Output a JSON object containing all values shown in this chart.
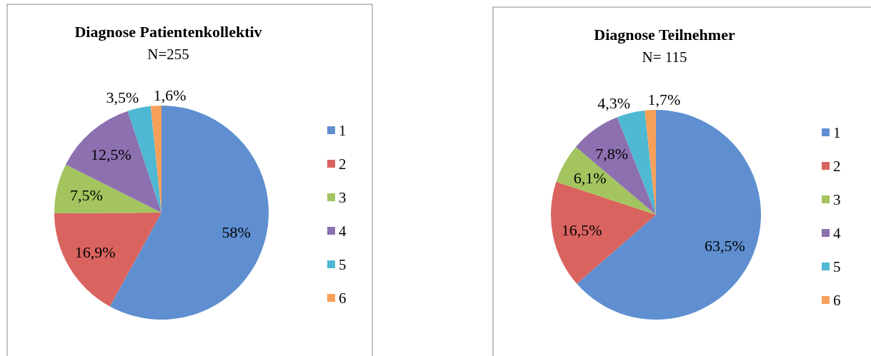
{
  "chart_data": [
    {
      "type": "pie",
      "title": "Diagnose Patientenkollektiv",
      "subtitle": "N=255",
      "categories": [
        "1",
        "2",
        "3",
        "4",
        "5",
        "6"
      ],
      "values": [
        58,
        16.9,
        7.5,
        12.5,
        3.5,
        1.6
      ],
      "value_labels": [
        "58%",
        "16,9%",
        "7,5%",
        "12,5%",
        "3,5%",
        "1,6%"
      ],
      "colors": [
        "#5f8fd0",
        "#d9635f",
        "#a3c45f",
        "#8d70b0",
        "#4fb8d2",
        "#f7a05a"
      ],
      "legend": "right"
    },
    {
      "type": "pie",
      "title": "Diagnose Teilnehmer",
      "subtitle": "N= 115",
      "categories": [
        "1",
        "2",
        "3",
        "4",
        "5",
        "6"
      ],
      "values": [
        63.5,
        16.5,
        6.1,
        7.8,
        4.3,
        1.7
      ],
      "value_labels": [
        "63,5%",
        "16,5%",
        "6,1%",
        "7,8%",
        "4,3%",
        "1,7%"
      ],
      "colors": [
        "#5f8fd0",
        "#d9635f",
        "#a3c45f",
        "#8d70b0",
        "#4fb8d2",
        "#f7a05a"
      ],
      "legend": "right"
    }
  ]
}
